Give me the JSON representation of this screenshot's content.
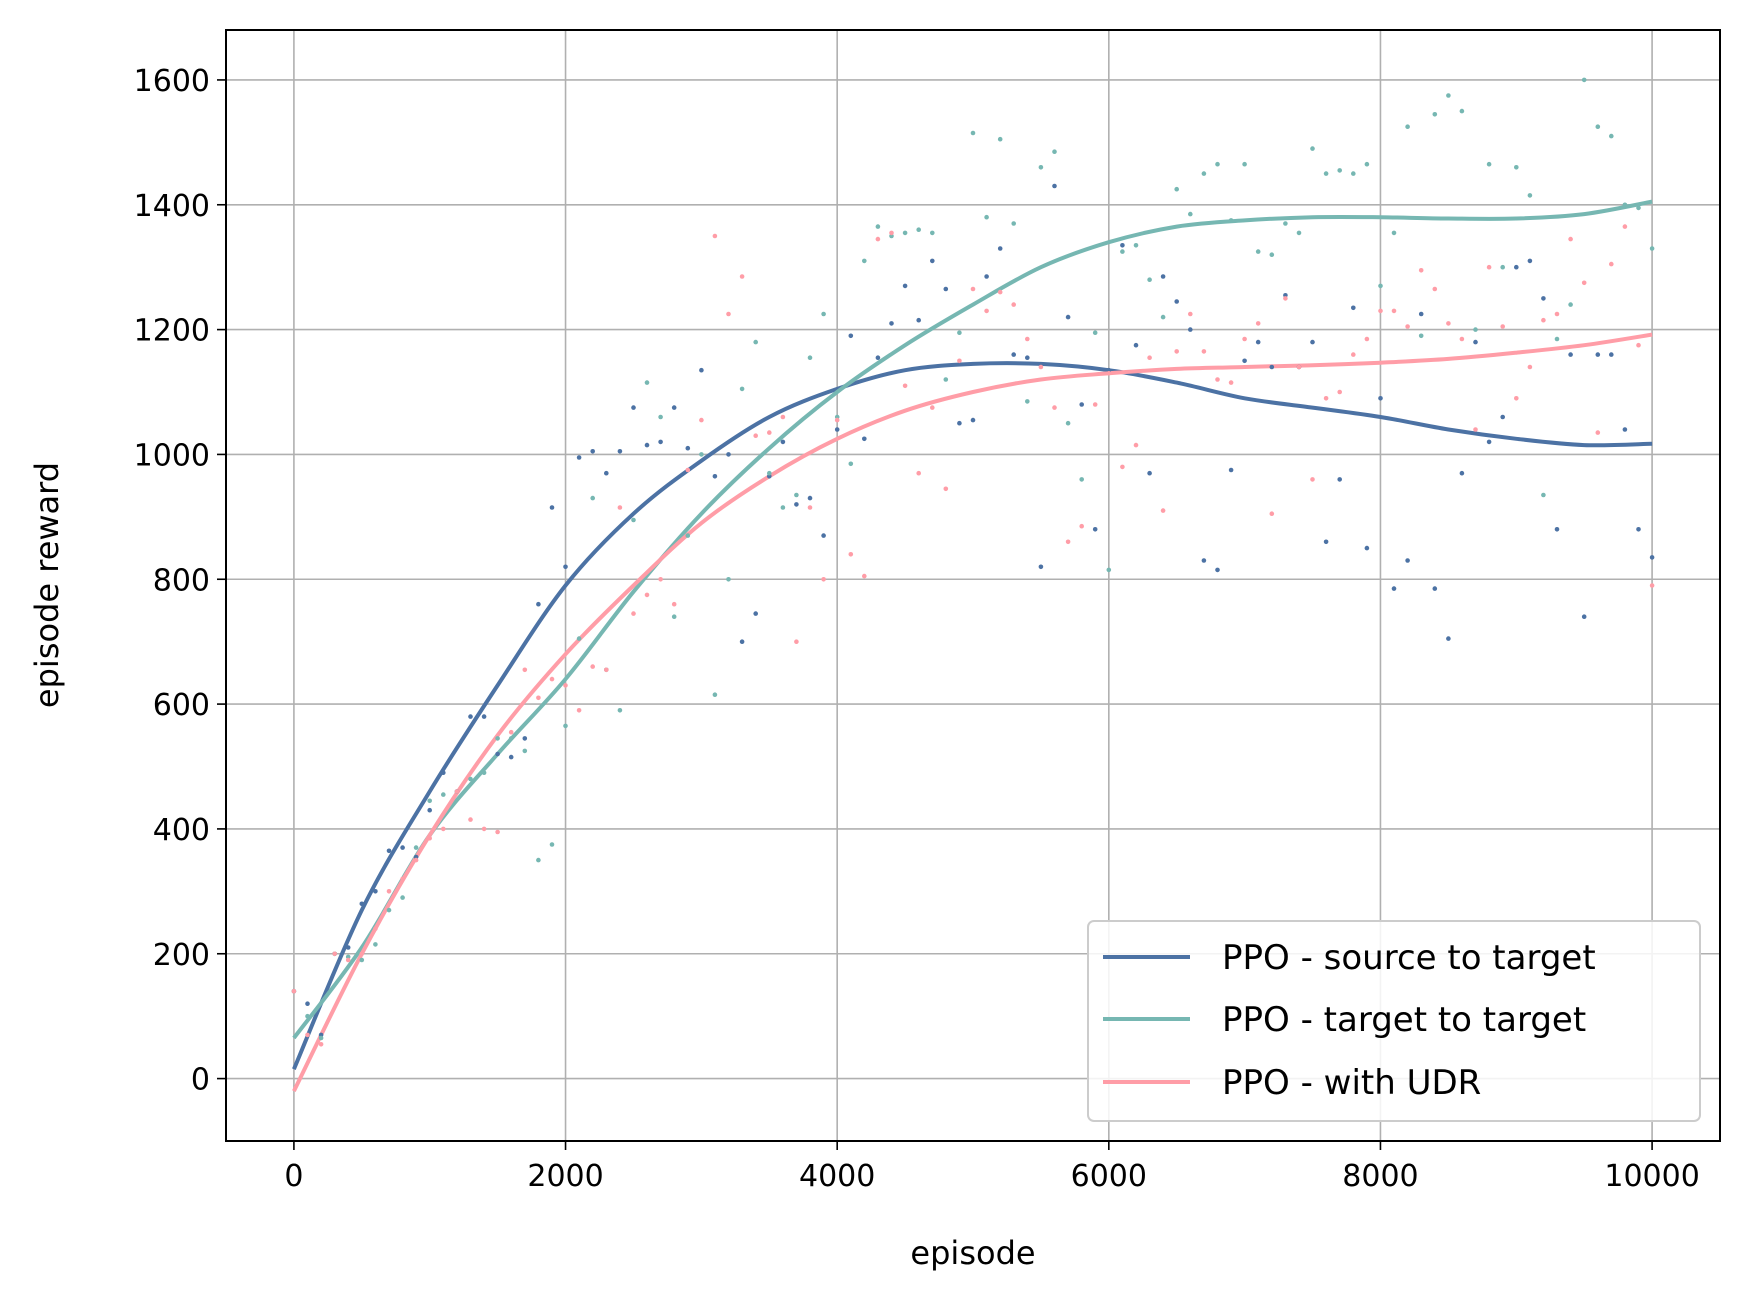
{
  "chart_data": {
    "type": "line",
    "title": "",
    "xlabel": "episode",
    "ylabel": "episode reward",
    "xlim": [
      -500,
      10500
    ],
    "ylim": [
      -100,
      1680
    ],
    "xticks": [
      0,
      2000,
      4000,
      6000,
      8000,
      10000
    ],
    "yticks": [
      0,
      200,
      400,
      600,
      800,
      1000,
      1200,
      1400,
      1600
    ],
    "grid": true,
    "legend_position": "lower right",
    "series": [
      {
        "name": "PPO - source to target",
        "color": "#4c72a4",
        "x": [
          0,
          500,
          1000,
          1500,
          2000,
          2500,
          3000,
          3500,
          4000,
          4500,
          5000,
          5500,
          6000,
          6500,
          7000,
          7500,
          8000,
          8500,
          9000,
          9500,
          10000
        ],
        "y": [
          15,
          270,
          460,
          630,
          790,
          905,
          990,
          1060,
          1105,
          1135,
          1145,
          1145,
          1135,
          1115,
          1090,
          1075,
          1060,
          1040,
          1025,
          1015,
          1017
        ],
        "scatter_x": [
          0,
          100,
          200,
          300,
          400,
          500,
          600,
          700,
          800,
          900,
          1000,
          1100,
          1200,
          1300,
          1400,
          1500,
          1600,
          1700,
          1800,
          1900,
          2000,
          2100,
          2200,
          2300,
          2400,
          2500,
          2600,
          2700,
          2800,
          2900,
          3000,
          3100,
          3200,
          3300,
          3400,
          3500,
          3600,
          3700,
          3800,
          3900,
          4000,
          4100,
          4200,
          4300,
          4400,
          4500,
          4600,
          4700,
          4800,
          4900,
          5000,
          5100,
          5200,
          5300,
          5400,
          5500,
          5600,
          5700,
          5800,
          5900,
          6000,
          6100,
          6200,
          6300,
          6400,
          6500,
          6600,
          6700,
          6800,
          6900,
          7000,
          7100,
          7200,
          7300,
          7400,
          7500,
          7600,
          7700,
          7800,
          7900,
          8000,
          8100,
          8200,
          8300,
          8400,
          8500,
          8600,
          8700,
          8800,
          8900,
          9000,
          9100,
          9200,
          9300,
          9400,
          9500,
          9600,
          9700,
          9800,
          9900,
          10000
        ],
        "scatter_y": [
          140,
          120,
          70,
          200,
          210,
          280,
          300,
          365,
          370,
          355,
          430,
          490,
          460,
          580,
          580,
          520,
          515,
          545,
          760,
          915,
          820,
          995,
          1005,
          970,
          1005,
          1075,
          1015,
          1020,
          1075,
          1010,
          1135,
          965,
          1000,
          700,
          745,
          965,
          1020,
          920,
          930,
          870,
          1040,
          1190,
          1025,
          1155,
          1210,
          1270,
          1215,
          1310,
          1265,
          1050,
          1055,
          1285,
          1330,
          1160,
          1155,
          820,
          1430,
          1220,
          1080,
          880,
          1135,
          1335,
          1175,
          970,
          1285,
          1245,
          1200,
          830,
          815,
          975,
          1150,
          1180,
          1140,
          1255,
          1140,
          1180,
          860,
          960,
          1235,
          850,
          1090,
          785,
          830,
          1225,
          785,
          705,
          970,
          1180,
          1020,
          1060,
          1300,
          1310,
          1250,
          880,
          1160,
          740,
          1160,
          1160,
          1040,
          880,
          835
        ]
      },
      {
        "name": "PPO - target to target",
        "color": "#76b7b2",
        "x": [
          0,
          500,
          1000,
          1500,
          2000,
          2500,
          3000,
          3500,
          4000,
          4500,
          5000,
          5500,
          6000,
          6500,
          7000,
          7500,
          8000,
          8500,
          9000,
          9500,
          10000
        ],
        "y": [
          65,
          210,
          390,
          520,
          640,
          780,
          905,
          1010,
          1100,
          1175,
          1240,
          1300,
          1340,
          1365,
          1375,
          1380,
          1380,
          1378,
          1378,
          1385,
          1405
        ],
        "scatter_x": [
          0,
          100,
          200,
          300,
          400,
          500,
          600,
          700,
          800,
          900,
          1000,
          1100,
          1200,
          1300,
          1400,
          1500,
          1600,
          1700,
          1800,
          1900,
          2000,
          2100,
          2200,
          2300,
          2400,
          2500,
          2600,
          2700,
          2800,
          2900,
          3000,
          3100,
          3200,
          3300,
          3400,
          3500,
          3600,
          3700,
          3800,
          3900,
          4000,
          4100,
          4200,
          4300,
          4400,
          4500,
          4600,
          4700,
          4800,
          4900,
          5000,
          5100,
          5200,
          5300,
          5400,
          5500,
          5600,
          5700,
          5800,
          5900,
          6000,
          6100,
          6200,
          6300,
          6400,
          6500,
          6600,
          6700,
          6800,
          6900,
          7000,
          7100,
          7200,
          7300,
          7400,
          7500,
          7600,
          7700,
          7800,
          7900,
          8000,
          8100,
          8200,
          8300,
          8400,
          8500,
          8600,
          8700,
          8800,
          8900,
          9000,
          9100,
          9200,
          9300,
          9400,
          9500,
          9600,
          9700,
          9800,
          9900,
          10000
        ],
        "scatter_y": [
          140,
          100,
          65,
          200,
          195,
          190,
          215,
          270,
          290,
          370,
          445,
          455,
          460,
          480,
          490,
          545,
          545,
          525,
          350,
          375,
          565,
          705,
          930,
          655,
          590,
          895,
          1115,
          1060,
          740,
          870,
          1000,
          615,
          800,
          1105,
          1180,
          970,
          915,
          935,
          1155,
          1225,
          1060,
          985,
          1310,
          1365,
          1350,
          1355,
          1360,
          1355,
          1120,
          1195,
          1515,
          1380,
          1505,
          1370,
          1085,
          1460,
          1485,
          1050,
          960,
          1195,
          815,
          1325,
          1335,
          1280,
          1220,
          1425,
          1385,
          1450,
          1465,
          1375,
          1465,
          1325,
          1320,
          1370,
          1355,
          1490,
          1450,
          1455,
          1450,
          1465,
          1270,
          1355,
          1525,
          1190,
          1545,
          1575,
          1550,
          1200,
          1465,
          1300,
          1460,
          1415,
          935,
          1185,
          1240,
          1600,
          1525,
          1510,
          1400,
          1395,
          1330
        ]
      },
      {
        "name": "PPO - with UDR",
        "color": "#ff9da7",
        "x": [
          0,
          500,
          1000,
          1500,
          2000,
          2500,
          3000,
          3500,
          4000,
          4500,
          5000,
          5500,
          6000,
          6500,
          7000,
          7500,
          8000,
          8500,
          9000,
          9500,
          10000
        ],
        "y": [
          -20,
          200,
          390,
          550,
          680,
          790,
          890,
          965,
          1025,
          1070,
          1100,
          1120,
          1130,
          1137,
          1140,
          1143,
          1147,
          1153,
          1163,
          1175,
          1192
        ],
        "scatter_x": [
          0,
          100,
          200,
          300,
          400,
          500,
          600,
          700,
          800,
          900,
          1000,
          1100,
          1200,
          1300,
          1400,
          1500,
          1600,
          1700,
          1800,
          1900,
          2000,
          2100,
          2200,
          2300,
          2400,
          2500,
          2600,
          2700,
          2800,
          2900,
          3000,
          3100,
          3200,
          3300,
          3400,
          3500,
          3600,
          3700,
          3800,
          3900,
          4000,
          4100,
          4200,
          4300,
          4400,
          4500,
          4600,
          4700,
          4800,
          4900,
          5000,
          5100,
          5200,
          5300,
          5400,
          5500,
          5600,
          5700,
          5800,
          5900,
          6000,
          6100,
          6200,
          6300,
          6400,
          6500,
          6600,
          6700,
          6800,
          6900,
          7000,
          7100,
          7200,
          7300,
          7400,
          7500,
          7600,
          7700,
          7800,
          7900,
          8000,
          8100,
          8200,
          8300,
          8400,
          8500,
          8600,
          8700,
          8800,
          8900,
          9000,
          9100,
          9200,
          9300,
          9400,
          9500,
          9600,
          9700,
          9800,
          9900,
          10000
        ],
        "scatter_y": [
          140,
          70,
          55,
          200,
          190,
          200,
          240,
          300,
          320,
          350,
          385,
          400,
          460,
          415,
          400,
          395,
          555,
          655,
          610,
          640,
          630,
          590,
          660,
          655,
          915,
          745,
          775,
          800,
          760,
          975,
          1055,
          1350,
          1225,
          1285,
          1030,
          1035,
          1060,
          700,
          915,
          800,
          1055,
          840,
          805,
          1345,
          1355,
          1110,
          970,
          1075,
          945,
          1150,
          1265,
          1230,
          1260,
          1240,
          1185,
          1140,
          1075,
          860,
          885,
          1080,
          1130,
          980,
          1015,
          1155,
          910,
          1165,
          1225,
          1165,
          1120,
          1115,
          1185,
          1210,
          905,
          1250,
          1140,
          960,
          1090,
          1100,
          1160,
          1185,
          1230,
          1230,
          1205,
          1295,
          1265,
          1210,
          1185,
          1040,
          1300,
          1205,
          1090,
          1140,
          1215,
          1225,
          1345,
          1275,
          1035,
          1305,
          1365,
          1175,
          790
        ]
      }
    ]
  }
}
